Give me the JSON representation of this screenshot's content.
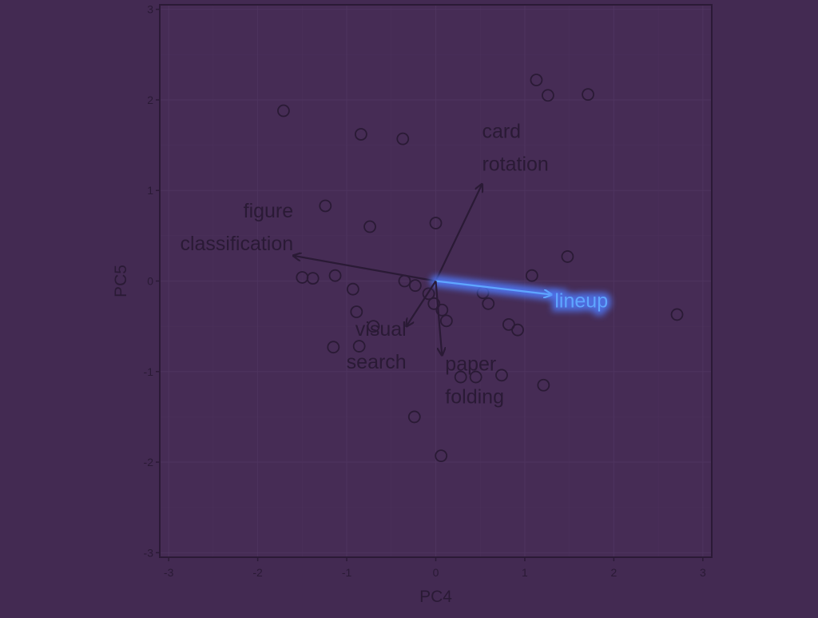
{
  "colors": {
    "background": "#432a52",
    "panel": "#462c55",
    "axis": "#2b1a36",
    "grid": "#4f3560",
    "text": "#2a1a35",
    "highlight": "#4f7bff",
    "highlight_text": "#5fa6ff"
  },
  "chart_data": {
    "type": "scatter",
    "xlabel": "PC4",
    "ylabel": "PC5",
    "xlim": [
      -3.1,
      3.1
    ],
    "ylim": [
      -3.05,
      3.05
    ],
    "xticks": [
      -3,
      -2,
      -1,
      0,
      1,
      2,
      3
    ],
    "yticks": [
      -3,
      -2,
      -1,
      0,
      1,
      2,
      3
    ],
    "grid": true,
    "points": [
      {
        "x": 1.13,
        "y": 2.22
      },
      {
        "x": 1.26,
        "y": 2.05
      },
      {
        "x": 1.71,
        "y": 2.06
      },
      {
        "x": -1.71,
        "y": 1.88
      },
      {
        "x": -0.84,
        "y": 1.62
      },
      {
        "x": -0.37,
        "y": 1.57
      },
      {
        "x": -1.24,
        "y": 0.83
      },
      {
        "x": -0.74,
        "y": 0.6
      },
      {
        "x": 0.0,
        "y": 0.64
      },
      {
        "x": 1.48,
        "y": 0.27
      },
      {
        "x": -1.5,
        "y": 0.04
      },
      {
        "x": -1.38,
        "y": 0.03
      },
      {
        "x": -1.13,
        "y": 0.06
      },
      {
        "x": -0.93,
        "y": -0.09
      },
      {
        "x": -0.35,
        "y": 0.0
      },
      {
        "x": -0.23,
        "y": -0.05
      },
      {
        "x": -0.08,
        "y": -0.14
      },
      {
        "x": -0.02,
        "y": -0.25
      },
      {
        "x": 0.07,
        "y": -0.32
      },
      {
        "x": 0.12,
        "y": -0.44
      },
      {
        "x": 0.53,
        "y": -0.13
      },
      {
        "x": 0.59,
        "y": -0.25
      },
      {
        "x": 1.08,
        "y": 0.06
      },
      {
        "x": -0.89,
        "y": -0.34
      },
      {
        "x": -0.7,
        "y": -0.5
      },
      {
        "x": -0.86,
        "y": -0.72
      },
      {
        "x": -1.15,
        "y": -0.73
      },
      {
        "x": 0.82,
        "y": -0.48
      },
      {
        "x": 0.92,
        "y": -0.54
      },
      {
        "x": 0.28,
        "y": -1.06
      },
      {
        "x": 0.45,
        "y": -1.06
      },
      {
        "x": 0.74,
        "y": -1.04
      },
      {
        "x": 1.21,
        "y": -1.15
      },
      {
        "x": -0.24,
        "y": -1.5
      },
      {
        "x": 0.06,
        "y": -1.93
      },
      {
        "x": 2.71,
        "y": -0.37
      }
    ],
    "loadings": [
      {
        "name": "card rotation",
        "label_lines": [
          "card",
          "rotation"
        ],
        "x": 0.52,
        "y": 1.07,
        "highlight": false
      },
      {
        "name": "figure classification",
        "label_lines": [
          "figure",
          "classification"
        ],
        "x": -1.6,
        "y": 0.28,
        "highlight": false
      },
      {
        "name": "lineup",
        "label_lines": [
          "lineup"
        ],
        "x": 1.3,
        "y": -0.15,
        "highlight": true
      },
      {
        "name": "visual search",
        "label_lines": [
          "visual",
          "search"
        ],
        "x": -0.33,
        "y": -0.5,
        "highlight": false
      },
      {
        "name": "paper folding",
        "label_lines": [
          "paper",
          "folding"
        ],
        "x": 0.07,
        "y": -0.82,
        "highlight": false
      }
    ]
  }
}
